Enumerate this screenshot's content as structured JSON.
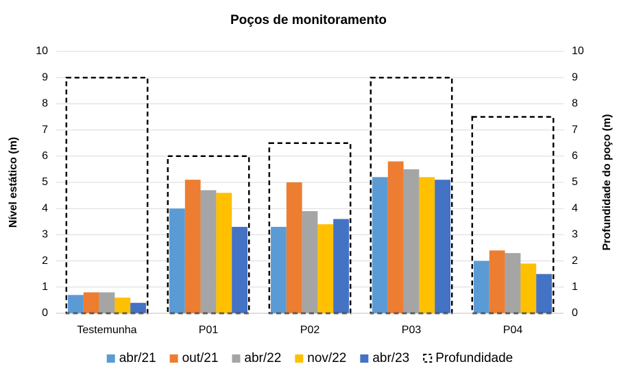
{
  "chart_data": {
    "type": "bar",
    "title": "Poços de monitoramento",
    "y_label": "Nível estático (m)",
    "y2_label": "Profundidade do poço (m)",
    "categories": [
      "Testemunha",
      "P01",
      "P02",
      "P03",
      "P04"
    ],
    "series": [
      {
        "name": "abr/21",
        "color": "#5b9bd5",
        "values": [
          0.7,
          4.0,
          3.3,
          5.2,
          2.0
        ]
      },
      {
        "name": "out/21",
        "color": "#ed7d31",
        "values": [
          0.8,
          5.1,
          5.0,
          5.8,
          2.4
        ]
      },
      {
        "name": "abr/22",
        "color": "#a5a5a5",
        "values": [
          0.8,
          4.7,
          3.9,
          5.5,
          2.3
        ]
      },
      {
        "name": "nov/22",
        "color": "#ffc000",
        "values": [
          0.6,
          4.6,
          3.4,
          5.2,
          1.9
        ]
      },
      {
        "name": "abr/23",
        "color": "#4472c4",
        "values": [
          0.4,
          3.3,
          3.6,
          5.1,
          1.5
        ]
      },
      {
        "name": "Profundidade",
        "color": "#000000",
        "style": "dashed",
        "axis": "y2",
        "values": [
          9,
          6,
          6.5,
          9,
          7.5
        ]
      }
    ],
    "ylim": [
      0,
      10
    ],
    "yticks": [
      0,
      1,
      2,
      3,
      4,
      5,
      6,
      7,
      8,
      9,
      10
    ],
    "y2lim": [
      0,
      10
    ],
    "y2ticks": [
      0,
      1,
      2,
      3,
      4,
      5,
      6,
      7,
      8,
      9,
      10
    ],
    "grid": true,
    "legend": "bottom"
  }
}
